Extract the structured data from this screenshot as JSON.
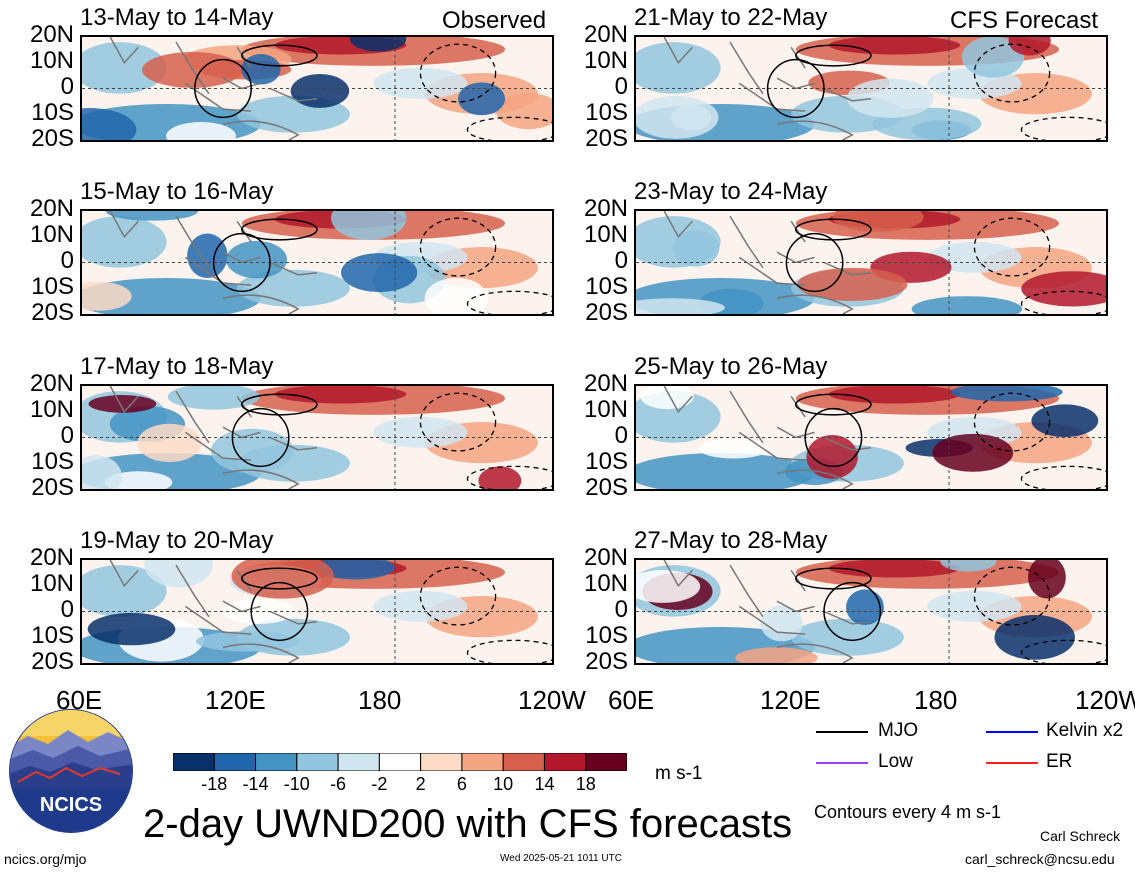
{
  "observed_label": "Observed",
  "forecast_label": "CFS Forecast",
  "lat_labels": [
    "20N",
    "10N",
    "0",
    "10S",
    "20S"
  ],
  "lon_labels": [
    "60E",
    "120E",
    "180",
    "120W"
  ],
  "panels_left": [
    {
      "title": "13-May to 14-May"
    },
    {
      "title": "15-May to 16-May"
    },
    {
      "title": "17-May to 18-May"
    },
    {
      "title": "19-May to 20-May"
    }
  ],
  "panels_right": [
    {
      "title": "21-May to 22-May"
    },
    {
      "title": "23-May to 24-May"
    },
    {
      "title": "25-May to 26-May"
    },
    {
      "title": "27-May to 28-May"
    }
  ],
  "colorbar": {
    "labels": [
      "-18",
      "-14",
      "-10",
      "-6",
      "-2",
      "2",
      "6",
      "10",
      "14",
      "18"
    ],
    "units": "m s-1",
    "colors": [
      "#08306b",
      "#2166ac",
      "#4393c3",
      "#92c5de",
      "#d1e5f0",
      "#ffffff",
      "#fddbc7",
      "#f4a582",
      "#d6604d",
      "#b2182b",
      "#67001f"
    ]
  },
  "legend": {
    "items": [
      {
        "label": "MJO",
        "color": "#000000"
      },
      {
        "label": "Kelvin x2",
        "color": "#0000ff"
      },
      {
        "label": "Low",
        "color": "#a040ff"
      },
      {
        "label": "ER",
        "color": "#ff2020"
      }
    ],
    "contour_note": "Contours every 4 m s-1"
  },
  "title": "2-day UWND200 with CFS forecasts",
  "logo_text": "NCICS",
  "footer": {
    "url": "ncics.org/mjo",
    "timestamp": "Wed 2025-05-21 1011 UTC",
    "author": "Carl Schreck",
    "email": "carl_schreck@ncsu.edu"
  }
}
